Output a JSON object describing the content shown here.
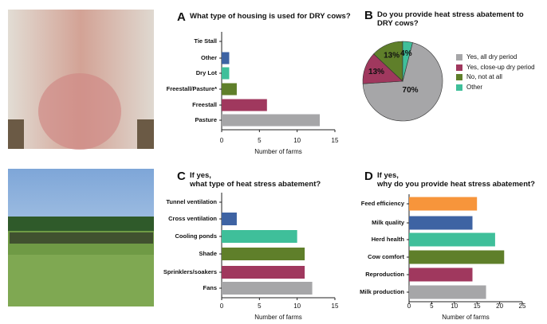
{
  "chart_data": [
    {
      "type": "hbar",
      "panel": "A",
      "title": "What type of housing is used for DRY cows?",
      "categories": [
        "Tie Stall",
        "Other",
        "Dry Lot",
        "Freestall/Pasture*",
        "Freestall",
        "Pasture"
      ],
      "values": [
        0,
        1,
        1,
        2,
        6,
        13
      ],
      "colors": [
        "#f7953b",
        "#3e63a3",
        "#3fbf9a",
        "#5f7f2a",
        "#a0385e",
        "#a6a6a8"
      ],
      "xlim": [
        0,
        15
      ],
      "xticks": [
        0,
        5,
        10,
        15
      ],
      "xlabel": "Number of farms"
    },
    {
      "type": "pie",
      "panel": "B",
      "title": "Do you provide heat stress abatement to\nDRY cows?",
      "categories": [
        "Yes, all dry period",
        "Yes, close-up dry period",
        "No, not at all",
        "Other"
      ],
      "values": [
        70,
        13,
        13,
        4
      ],
      "value_labels": [
        "70%",
        "13%",
        "13%",
        "4%"
      ],
      "colors": [
        "#a6a6a8",
        "#a0385e",
        "#5f7f2a",
        "#3fbf9a"
      ]
    },
    {
      "type": "hbar",
      "panel": "C",
      "title": "If yes,\nwhat type of heat stress abatement?",
      "categories": [
        "Tunnel ventilation",
        "Cross ventilation",
        "Cooling ponds",
        "Shade",
        "Sprinklers/soakers",
        "Fans"
      ],
      "values": [
        0,
        2,
        10,
        11,
        11,
        12
      ],
      "colors": [
        "#f7953b",
        "#3e63a3",
        "#3fbf9a",
        "#5f7f2a",
        "#a0385e",
        "#a6a6a8"
      ],
      "xlim": [
        0,
        15
      ],
      "xticks": [
        0,
        5,
        10,
        15
      ],
      "xlabel": "Number of farms"
    },
    {
      "type": "hbar",
      "panel": "D",
      "title": "If yes,\nwhy do you provide heat stress abatement?",
      "categories": [
        "Feed efficiency",
        "Milk quality",
        "Herd health",
        "Cow comfort",
        "Reproduction",
        "Milk production"
      ],
      "values": [
        15,
        14,
        19,
        21,
        14,
        17
      ],
      "colors": [
        "#f7953b",
        "#3e63a3",
        "#3fbf9a",
        "#5f7f2a",
        "#a0385e",
        "#a6a6a8"
      ],
      "xlim": [
        0,
        25
      ],
      "xticks": [
        0,
        5,
        10,
        15,
        20,
        25
      ],
      "xlabel": "Number of farms"
    }
  ]
}
